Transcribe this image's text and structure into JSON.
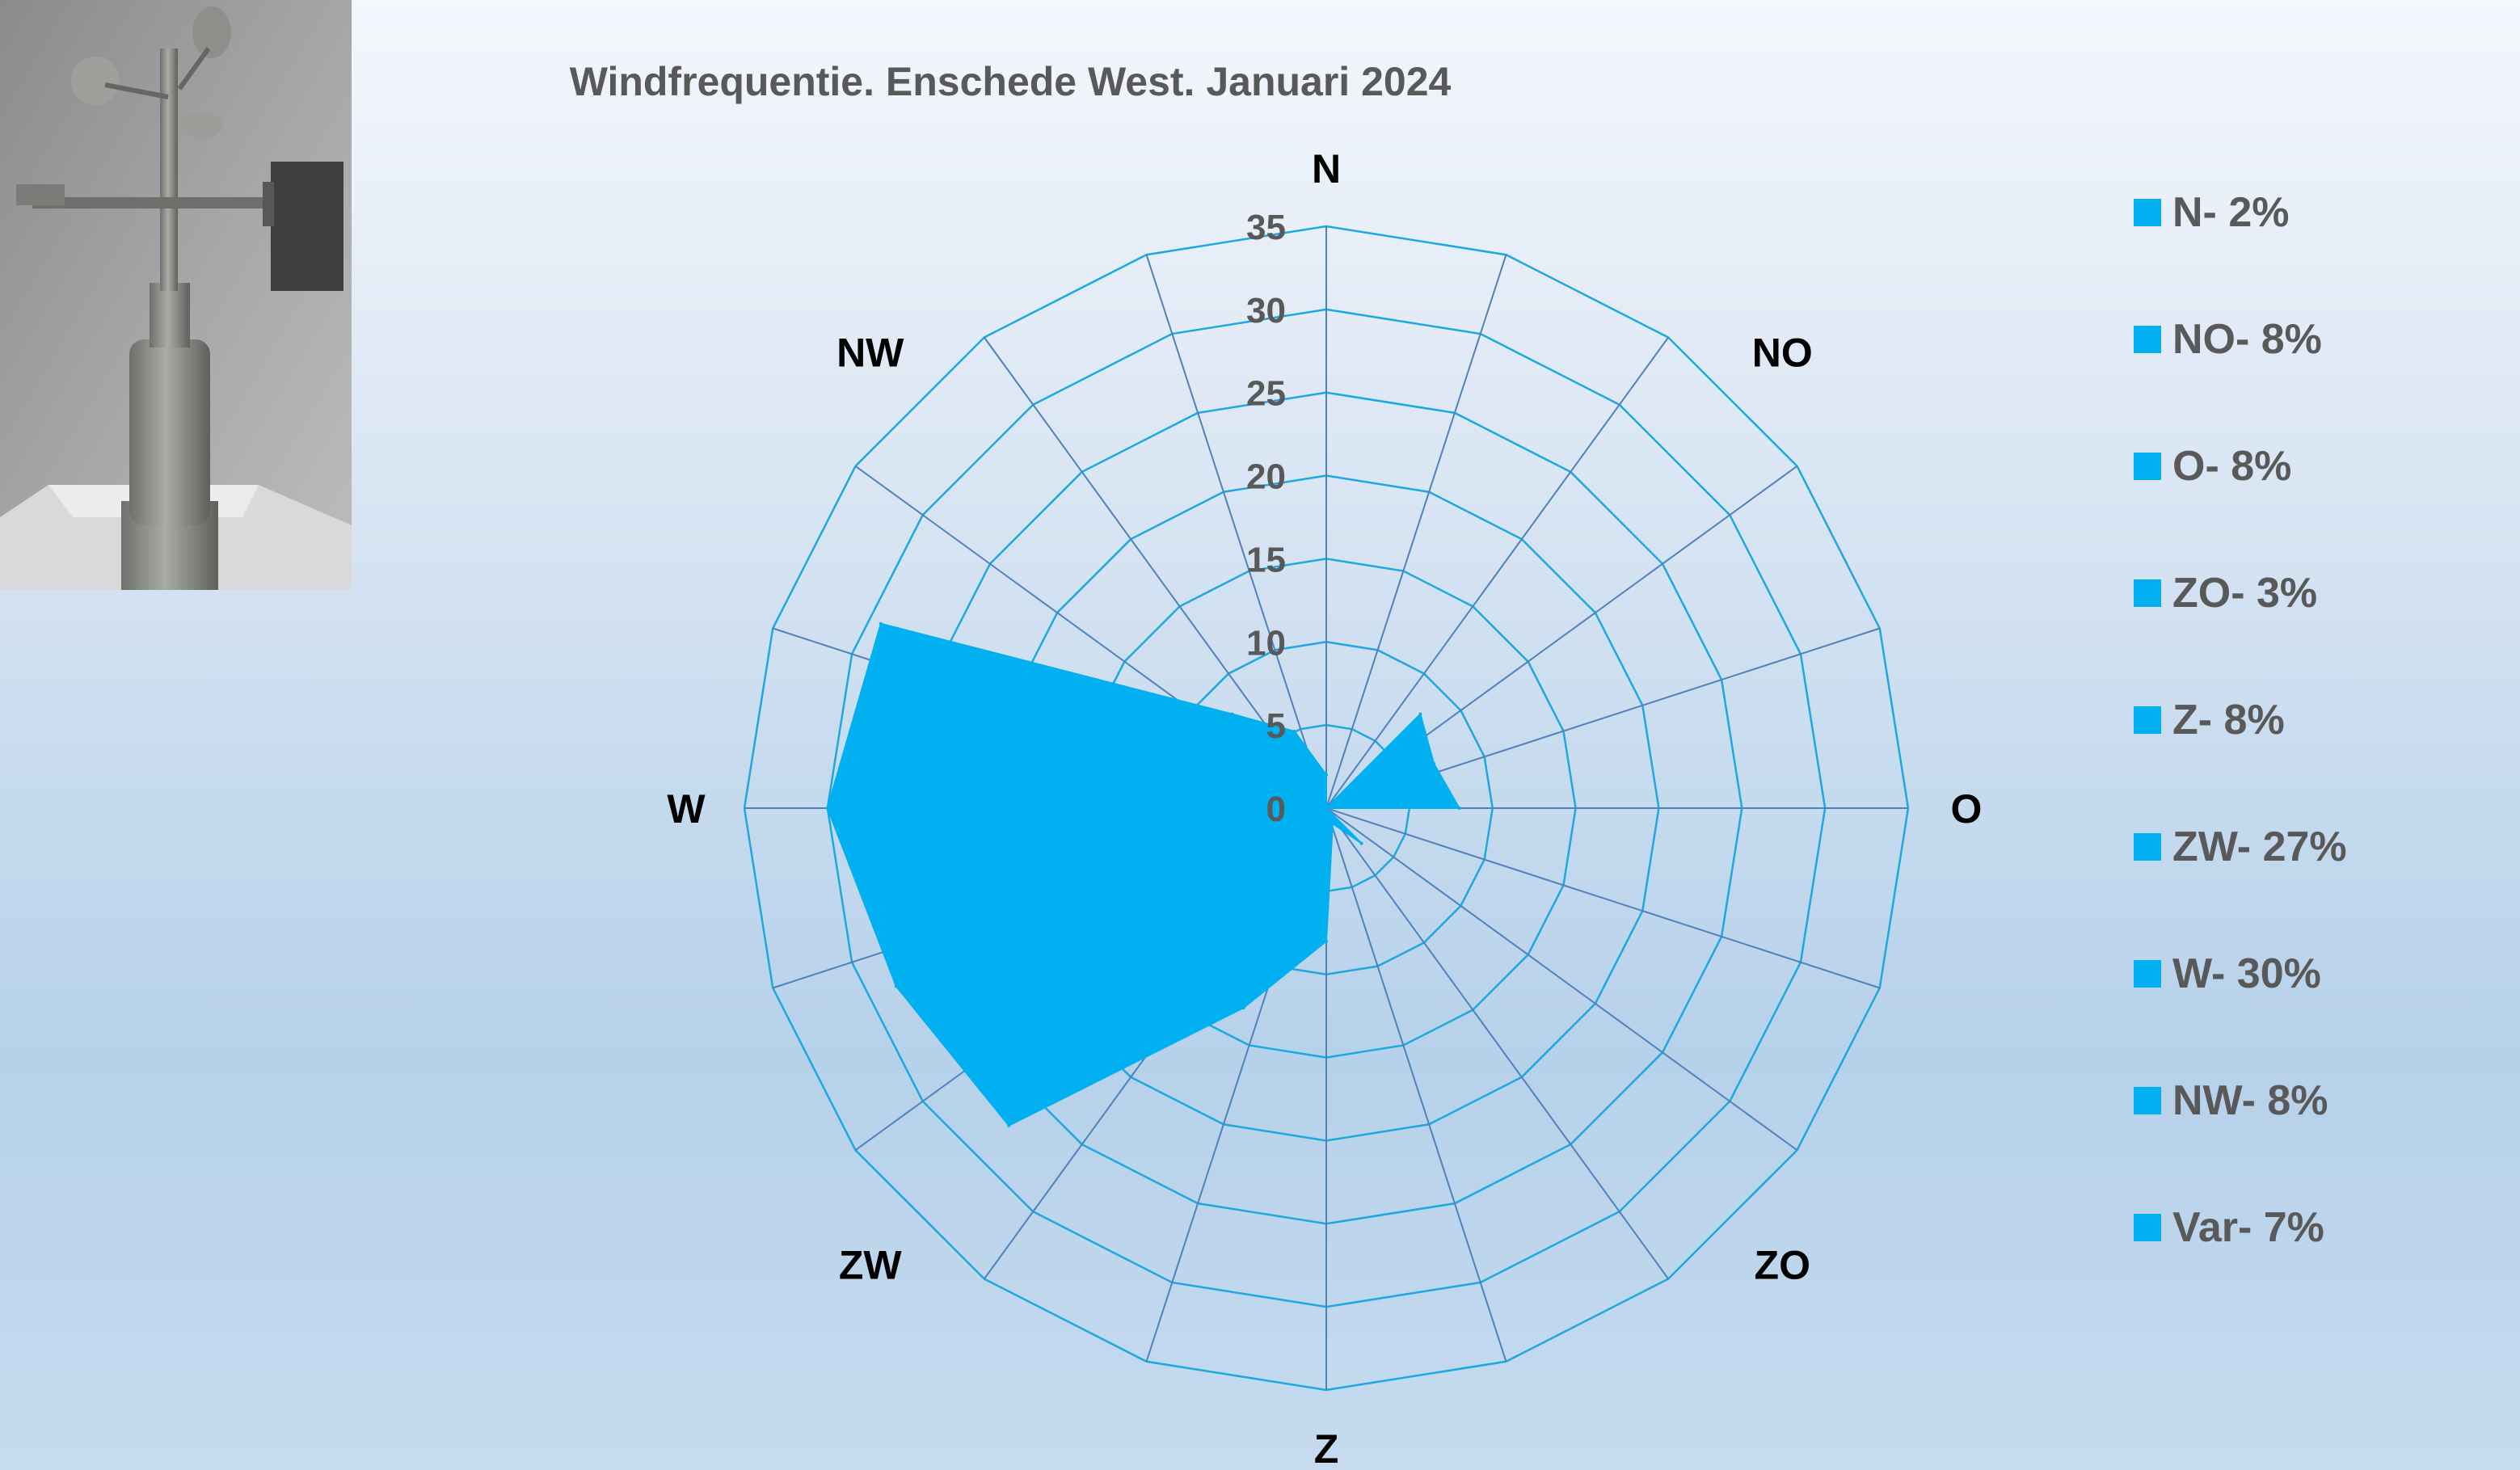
{
  "chart_data": {
    "type": "radar",
    "title": "Windfrequentie. Enschede West. Januari 2024",
    "categories": [
      "N",
      "NO",
      "O",
      "ZO",
      "Z",
      "ZW",
      "W",
      "NW"
    ],
    "series": [
      {
        "values": [
          {
            "angle": 0,
            "value": 2
          },
          {
            "angle": 22.5,
            "value": 0
          },
          {
            "angle": 45,
            "value": 8
          },
          {
            "angle": 67.5,
            "value": 7
          },
          {
            "angle": 90,
            "value": 8
          },
          {
            "angle": 112.5,
            "value": 0
          },
          {
            "angle": 135,
            "value": 3
          },
          {
            "angle": 157.5,
            "value": 1
          },
          {
            "angle": 180,
            "value": 8
          },
          {
            "angle": 202.5,
            "value": 13
          },
          {
            "angle": 225,
            "value": 27
          },
          {
            "angle": 247.5,
            "value": 28
          },
          {
            "angle": 270,
            "value": 30
          },
          {
            "angle": 292.5,
            "value": 29
          },
          {
            "angle": 315,
            "value": 8
          },
          {
            "angle": 337.5,
            "value": 5
          }
        ]
      }
    ],
    "rlim": [
      0,
      35
    ],
    "rticks": [
      0,
      5,
      10,
      15,
      20,
      25,
      30,
      35
    ],
    "spokes": 20,
    "grid": true,
    "legend_position": "right",
    "colors": {
      "fill": "#00b0f0",
      "grid": "#1ca8e0",
      "spoke": "#4f81bd"
    }
  },
  "legend": [
    {
      "label": "N- 2%"
    },
    {
      "label": "NO- 8%"
    },
    {
      "label": "O- 8%"
    },
    {
      "label": "ZO- 3%"
    },
    {
      "label": "Z- 8%"
    },
    {
      "label": "ZW- 27%"
    },
    {
      "label": "W- 30%"
    },
    {
      "label": "NW- 8%"
    },
    {
      "label": "Var- 7%"
    }
  ],
  "photo": {
    "icon": "anemometer-icon"
  }
}
